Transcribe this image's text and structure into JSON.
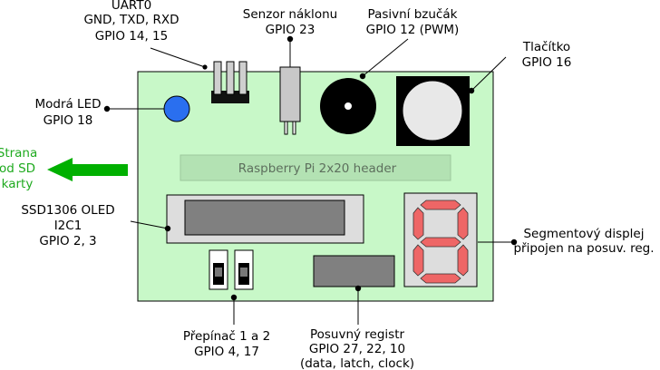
{
  "colors": {
    "board_fill": "#c8f8c8",
    "header_fill": "#b3e2b3",
    "led_blue": "#2a6fef",
    "segment_red": "#ee6666",
    "arrow_green": "#00b000",
    "oled_screen": "#808080"
  },
  "labels": {
    "uart_l1": "UART0",
    "uart_l2": "GND, TXD, RXD",
    "uart_l3": "GPIO 14, 15",
    "tilt_l1": "Senzor náklonu",
    "tilt_l2": "GPIO 23",
    "buzzer_l1": "Pasivní bzučák",
    "buzzer_l2": "GPIO 12 (PWM)",
    "button_l1": "Tlačítko",
    "button_l2": "GPIO 16",
    "led_l1": "Modrá LED",
    "led_l2": "GPIO 18",
    "sd_l1": "Strana",
    "sd_l2": "od SD",
    "sd_l3": "karty",
    "header_text": "Raspberry Pi 2x20 header",
    "oled_l1": "SSD1306 OLED",
    "oled_l2": "I2C1",
    "oled_l3": "GPIO 2, 3",
    "seg_l1": "Segmentový displej",
    "seg_l2": "připojen na posuv. reg.",
    "switch_l1": "Přepínač 1 a 2",
    "switch_l2": "GPIO 4, 17",
    "shift_l1": "Posuvný registr",
    "shift_l2": "GPIO 27, 22, 10",
    "shift_l3": "(data, latch, clock)"
  },
  "segment_display": {
    "digit": "8"
  }
}
